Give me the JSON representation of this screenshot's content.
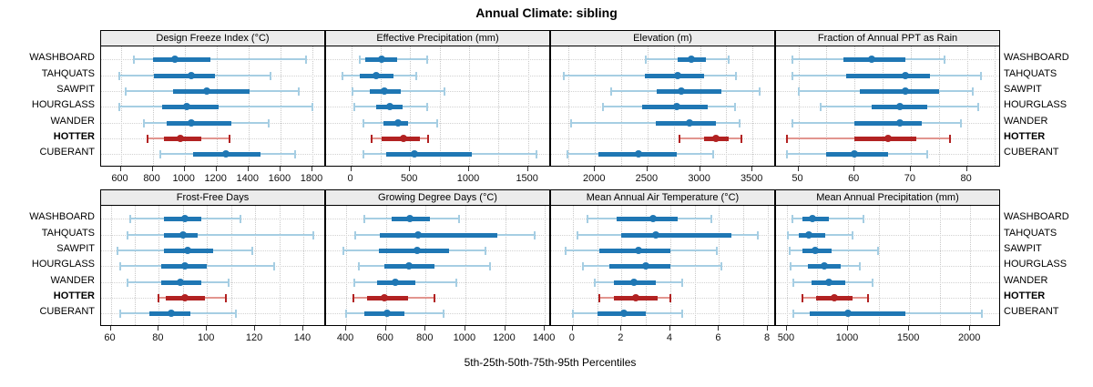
{
  "chart_data": {
    "type": "scatter",
    "variant": "percentile-dot-whisker-trellis",
    "title": "Annual Climate: sibling",
    "caption": "5th-25th-50th-75th-95th Percentiles",
    "grid": true,
    "sites": [
      "WASHBOARD",
      "TAHQUATS",
      "SAWPIT",
      "HOURGLASS",
      "WANDER",
      "HOTTER",
      "CUBERANT"
    ],
    "highlight_site": "HOTTER",
    "percentiles": [
      5,
      25,
      50,
      75,
      95
    ],
    "colors": {
      "blue_dark": "#1f77b4",
      "blue_light": "#a6cee3",
      "red_dark": "#b22222",
      "red_light": "#e2958f",
      "strip_bg": "#ececec",
      "grid_line": "#c8c8c8",
      "panel_border": "#000000"
    },
    "panels": [
      {
        "title": "Design Freeze Index (°C)",
        "row": 0,
        "col": 0,
        "ticks": [
          600,
          800,
          1000,
          1200,
          1400,
          1600,
          1800
        ],
        "gridlines": [
          600,
          800,
          1000,
          1200,
          1400,
          1600,
          1800
        ],
        "xlim": [
          483,
          1880
        ],
        "values": {
          "WASHBOARD": [
            680,
            800,
            940,
            1160,
            1760
          ],
          "TAHQUATS": [
            590,
            805,
            1040,
            1190,
            1535
          ],
          "SAWPIT": [
            630,
            930,
            1140,
            1405,
            1715
          ],
          "HOURGLASS": [
            590,
            860,
            1015,
            1215,
            1800
          ],
          "WANDER": [
            745,
            885,
            1040,
            1290,
            1525
          ],
          "HOTTER": [
            765,
            870,
            975,
            1105,
            1280
          ],
          "CUBERANT": [
            845,
            1055,
            1260,
            1475,
            1690
          ]
        }
      },
      {
        "title": "Effective Precipitation (mm)",
        "row": 0,
        "col": 1,
        "ticks": [
          0,
          500,
          1000,
          1500
        ],
        "gridlines": [
          0,
          250,
          500,
          750,
          1000,
          1250,
          1500
        ],
        "xlim": [
          -205,
          1688
        ],
        "values": {
          "WASHBOARD": [
            75,
            120,
            260,
            390,
            645
          ],
          "TAHQUATS": [
            -75,
            70,
            215,
            360,
            555
          ],
          "SAWPIT": [
            10,
            160,
            280,
            425,
            790
          ],
          "HOURGLASS": [
            25,
            215,
            330,
            440,
            645
          ],
          "WANDER": [
            100,
            275,
            395,
            485,
            730
          ],
          "HOTTER": [
            175,
            255,
            445,
            585,
            655
          ],
          "CUBERANT": [
            100,
            300,
            535,
            1025,
            1570
          ]
        }
      },
      {
        "title": "Elevation (m)",
        "row": 0,
        "col": 2,
        "ticks": [
          2000,
          2500,
          3000,
          3500
        ],
        "gridlines": [
          1750,
          2000,
          2250,
          2500,
          2750,
          3000,
          3250,
          3500
        ],
        "xlim": [
          1590,
          3715
        ],
        "values": {
          "WASHBOARD": [
            2480,
            2785,
            2920,
            3055,
            3275
          ],
          "TAHQUATS": [
            1705,
            2475,
            2790,
            3035,
            3340
          ],
          "SAWPIT": [
            2150,
            2590,
            2825,
            3205,
            3565
          ],
          "HOURGLASS": [
            2075,
            2445,
            2775,
            3075,
            3330
          ],
          "WANDER": [
            1775,
            2575,
            2895,
            3150,
            3375
          ],
          "HOTTER": [
            2805,
            3035,
            3155,
            3275,
            3395
          ],
          "CUBERANT": [
            1740,
            2030,
            2410,
            2780,
            3125
          ]
        }
      },
      {
        "title": "Fraction of Annual PPT as Rain",
        "row": 0,
        "col": 3,
        "ticks": [
          50,
          60,
          70,
          80
        ],
        "gridlines": [
          50,
          55,
          60,
          65,
          70,
          75,
          80,
          85
        ],
        "xlim": [
          46.2,
          85.9
        ],
        "values": {
          "WASHBOARD": [
            49,
            58,
            63,
            69,
            76
          ],
          "TAHQUATS": [
            49,
            58.5,
            69,
            73.5,
            82.5
          ],
          "SAWPIT": [
            50,
            61,
            69,
            75,
            81
          ],
          "HOURGLASS": [
            54,
            63,
            68,
            73,
            82
          ],
          "WANDER": [
            49,
            60,
            68,
            72,
            79
          ],
          "HOTTER": [
            48,
            60,
            66,
            71,
            77
          ],
          "CUBERANT": [
            48,
            55,
            60,
            66,
            73
          ]
        }
      },
      {
        "title": "Frost-Free Days",
        "row": 1,
        "col": 0,
        "ticks": [
          60,
          80,
          100,
          120,
          140
        ],
        "gridlines": [
          60,
          70,
          80,
          90,
          100,
          110,
          120,
          130,
          140
        ],
        "xlim": [
          56.4,
          149.1
        ],
        "values": {
          "WASHBOARD": [
            68,
            82,
            91,
            97.5,
            114
          ],
          "TAHQUATS": [
            67,
            82,
            90,
            96,
            144
          ],
          "SAWPIT": [
            63,
            82,
            92,
            102.5,
            119
          ],
          "HOURGLASS": [
            64,
            81,
            91,
            100,
            128
          ],
          "WANDER": [
            67,
            81,
            89,
            97.5,
            109
          ],
          "HOTTER": [
            80,
            83,
            91,
            99,
            108
          ],
          "CUBERANT": [
            64,
            76,
            85,
            93,
            112
          ]
        }
      },
      {
        "title": "Growing Degree Days (°C)",
        "row": 1,
        "col": 1,
        "ticks": [
          400,
          600,
          800,
          1000,
          1200,
          1400
        ],
        "gridlines": [
          400,
          600,
          800,
          1000,
          1200,
          1400
        ],
        "xlim": [
          303,
          1427
        ],
        "values": {
          "WASHBOARD": [
            490,
            630,
            720,
            820,
            970
          ],
          "TAHQUATS": [
            445,
            570,
            760,
            1160,
            1350
          ],
          "SAWPIT": [
            385,
            565,
            755,
            920,
            1100
          ],
          "HOURGLASS": [
            465,
            590,
            715,
            845,
            1125
          ],
          "WANDER": [
            440,
            555,
            645,
            750,
            955
          ],
          "HOTTER": [
            435,
            505,
            590,
            710,
            845
          ],
          "CUBERANT": [
            400,
            490,
            605,
            695,
            890
          ]
        }
      },
      {
        "title": "Mean Annual Air Temperature (°C)",
        "row": 1,
        "col": 2,
        "ticks": [
          0,
          2,
          4,
          6,
          8
        ],
        "gridlines": [
          0,
          1,
          2,
          3,
          4,
          5,
          6,
          7,
          8
        ],
        "xlim": [
          -0.85,
          8.3
        ],
        "values": {
          "WASHBOARD": [
            0.6,
            1.8,
            3.3,
            4.3,
            5.7
          ],
          "TAHQUATS": [
            0.2,
            2.0,
            3.4,
            6.5,
            7.6
          ],
          "SAWPIT": [
            -0.3,
            1.1,
            2.7,
            4.0,
            5.9
          ],
          "HOURGLASS": [
            0.4,
            1.5,
            3.0,
            4.0,
            6.1
          ],
          "WANDER": [
            0.9,
            1.7,
            2.5,
            3.4,
            4.5
          ],
          "HOTTER": [
            1.1,
            1.7,
            2.6,
            3.5,
            4.0
          ],
          "CUBERANT": [
            0.0,
            1.0,
            2.1,
            3.0,
            4.5
          ]
        }
      },
      {
        "title": "Mean Annual Precipitation (mm)",
        "row": 1,
        "col": 3,
        "ticks": [
          500,
          1000,
          1500,
          2000
        ],
        "gridlines": [
          500,
          750,
          1000,
          1250,
          1500,
          1750,
          2000
        ],
        "xlim": [
          419,
          2244
        ],
        "values": {
          "WASHBOARD": [
            545,
            625,
            710,
            840,
            1125
          ],
          "TAHQUATS": [
            505,
            595,
            680,
            815,
            1035
          ],
          "SAWPIT": [
            525,
            630,
            735,
            865,
            1245
          ],
          "HOURGLASS": [
            530,
            670,
            805,
            940,
            1100
          ],
          "WANDER": [
            555,
            705,
            845,
            975,
            1200
          ],
          "HOTTER": [
            625,
            740,
            890,
            1035,
            1165
          ],
          "CUBERANT": [
            550,
            690,
            1000,
            1470,
            2095
          ]
        }
      }
    ]
  }
}
